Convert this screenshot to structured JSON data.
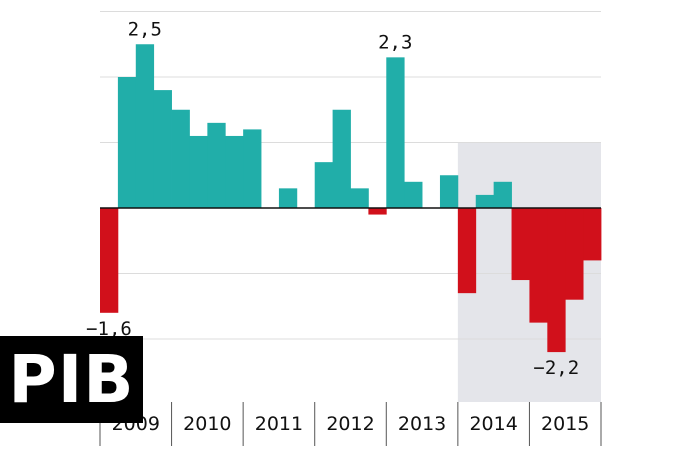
{
  "colors": {
    "positive": "#21aea9",
    "negative": "#d1101b",
    "shade": "#e4e5ea",
    "grid": "#dcdcdc",
    "axis": "#111111"
  },
  "title_box": {
    "text": "PIB"
  },
  "chart_data": {
    "type": "bar",
    "x_unit": "quarter",
    "ylim": [
      -2.9,
      3.0
    ],
    "grid_y": [
      -2,
      -1,
      0,
      1,
      2,
      3
    ],
    "shaded_range": [
      "2014-Q1",
      "2015-Q4"
    ],
    "years": [
      "2009",
      "2010",
      "2011",
      "2012",
      "2013",
      "2014",
      "2015"
    ],
    "quarters": [
      "2009-Q1",
      "2009-Q2",
      "2009-Q3",
      "2009-Q4",
      "2010-Q1",
      "2010-Q2",
      "2010-Q3",
      "2010-Q4",
      "2011-Q1",
      "2011-Q2",
      "2011-Q3",
      "2011-Q4",
      "2012-Q1",
      "2012-Q2",
      "2012-Q3",
      "2012-Q4",
      "2013-Q1",
      "2013-Q2",
      "2013-Q3",
      "2013-Q4",
      "2014-Q1",
      "2014-Q2",
      "2014-Q3",
      "2014-Q4",
      "2015-Q1",
      "2015-Q2",
      "2015-Q3",
      "2015-Q4"
    ],
    "values": [
      -1.6,
      2.0,
      2.5,
      1.8,
      1.5,
      1.1,
      1.3,
      1.1,
      1.2,
      0.0,
      0.3,
      0.0,
      0.7,
      1.5,
      0.3,
      -0.1,
      2.3,
      0.4,
      0.0,
      0.5,
      -1.3,
      0.2,
      0.4,
      -1.1,
      -1.75,
      -2.2,
      -1.4,
      -0.8
    ],
    "value_labels": [
      {
        "index": 0,
        "text": "−1,6",
        "position": "below"
      },
      {
        "index": 2,
        "text": "2,5",
        "position": "above"
      },
      {
        "index": 16,
        "text": "2,3",
        "position": "above"
      },
      {
        "index": 25,
        "text": "−2,2",
        "position": "below"
      }
    ]
  }
}
